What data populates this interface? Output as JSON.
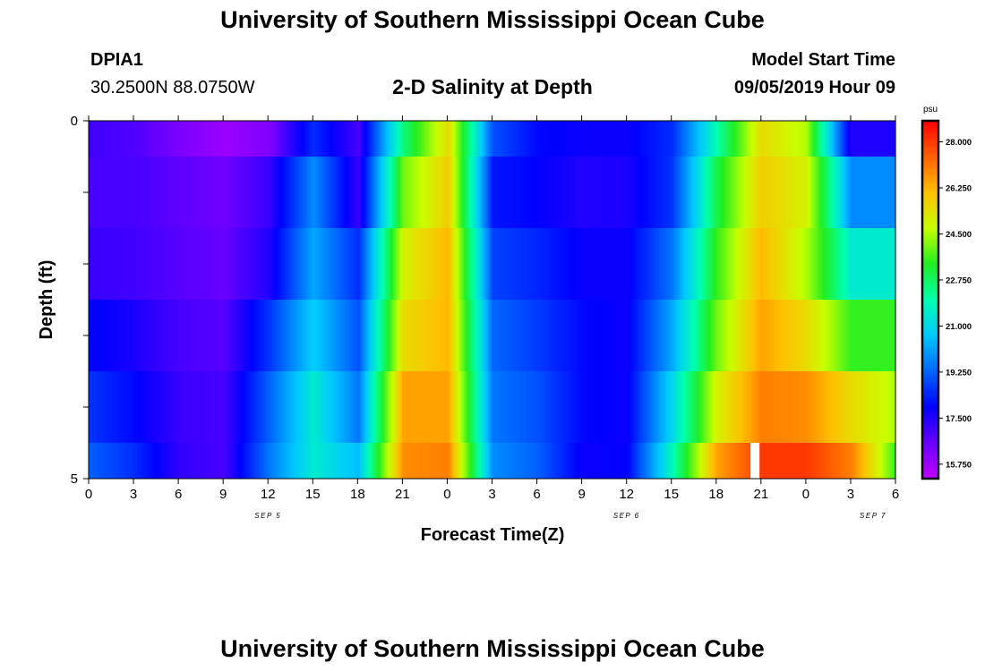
{
  "title_top": "University of Southern Mississippi Ocean Cube",
  "title_bottom": "University of Southern Mississippi Ocean Cube",
  "station": {
    "id": "DPIA1",
    "coords": "30.2500N 88.0750W"
  },
  "plot_title": "2-D Salinity at Depth",
  "model": {
    "label": "Model Start Time",
    "time": "09/05/2019 Hour 09"
  },
  "chart_data": {
    "type": "heatmap",
    "title": "2-D Salinity at Depth",
    "xlabel": "Forecast Time(Z)",
    "ylabel": "Depth (ft)",
    "ylim": [
      0,
      5
    ],
    "y_ticks": [
      "0",
      "5"
    ],
    "x_tick_labels": [
      "0",
      "3",
      "6",
      "9",
      "12",
      "15",
      "18",
      "21",
      "0",
      "3",
      "6",
      "9",
      "12",
      "15",
      "18",
      "21",
      "0",
      "3",
      "6"
    ],
    "date_labels": [
      "SEP 5",
      "SEP 6",
      "SEP 7"
    ],
    "colorbar": {
      "unit": "psu",
      "tick_labels": [
        "28.000",
        "26.250",
        "24.500",
        "22.750",
        "21.000",
        "19.250",
        "17.500",
        "15.750"
      ],
      "min": 15.2,
      "max": 28.8
    },
    "depth_layers": [
      "0-0.5",
      "0.5-1.5",
      "1.5-2.5",
      "2.5-3.5",
      "3.5-4.5",
      "4.5-5"
    ],
    "hours_from_start": [
      0,
      3,
      6,
      9,
      12,
      15,
      18,
      21,
      24,
      27,
      30,
      33,
      36,
      39,
      42,
      45,
      48,
      51,
      54
    ],
    "salinity_psu": [
      [
        17.1,
        16.9,
        16.3,
        15.8,
        16.2,
        18.5,
        17.0,
        22.5,
        25.5,
        19.0,
        18.0,
        17.8,
        17.8,
        18.5,
        22.0,
        25.5,
        24.5,
        17.5,
        17.6
      ],
      [
        17.0,
        17.0,
        16.7,
        16.5,
        17.2,
        19.8,
        17.2,
        24.0,
        25.8,
        18.2,
        17.9,
        17.5,
        17.6,
        18.6,
        23.0,
        25.8,
        25.0,
        19.8,
        19.8
      ],
      [
        17.2,
        17.1,
        16.8,
        16.6,
        17.5,
        20.2,
        18.5,
        25.0,
        26.2,
        18.8,
        18.4,
        17.8,
        17.8,
        19.5,
        23.5,
        26.2,
        24.5,
        21.5,
        21.5
      ],
      [
        18.0,
        17.6,
        17.0,
        16.8,
        18.6,
        20.8,
        19.0,
        25.5,
        26.2,
        19.3,
        18.7,
        18.0,
        17.8,
        20.2,
        24.0,
        26.5,
        25.5,
        23.5,
        23.5
      ],
      [
        18.6,
        18.0,
        17.2,
        17.0,
        19.2,
        21.5,
        19.5,
        26.5,
        26.5,
        19.5,
        19.0,
        18.0,
        17.8,
        21.0,
        25.0,
        27.0,
        26.8,
        25.5,
        24.5
      ],
      [
        19.2,
        18.5,
        17.3,
        17.0,
        19.5,
        21.5,
        20.5,
        26.8,
        27.0,
        19.8,
        19.2,
        17.8,
        17.9,
        21.8,
        26.5,
        28.0,
        28.0,
        27.0,
        23.5
      ]
    ],
    "missing_cell": {
      "hours_from_start": 44.6,
      "depth": 4.75
    }
  }
}
